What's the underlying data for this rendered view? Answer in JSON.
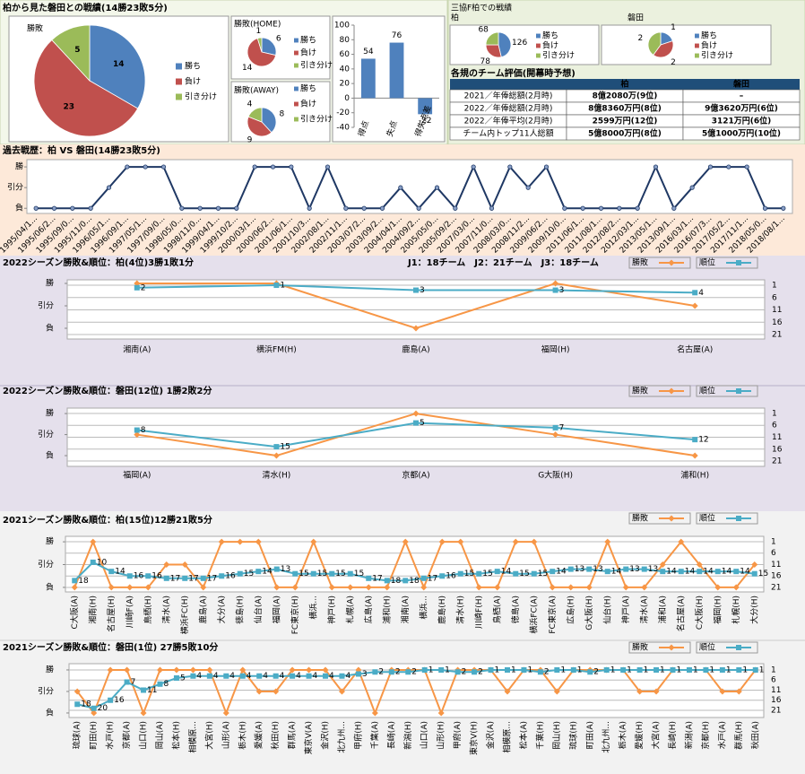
{
  "headings": [
    "柏から見た磐田との戦績(14勝23敗5分)",
    "三協F柏での戦績"
  ],
  "chart_data": [
    {
      "type": "pie",
      "title": "勝敗",
      "categories": [
        "勝ち",
        "負け",
        "引き分け"
      ],
      "values": [
        14,
        23,
        5
      ],
      "colors": [
        "#4f81bd",
        "#c0504d",
        "#9bbb59"
      ]
    },
    {
      "type": "pie",
      "title": "勝敗(HOME)",
      "categories": [
        "勝ち",
        "負け",
        "引き分け"
      ],
      "values": [
        6,
        14,
        1
      ],
      "colors": [
        "#4f81bd",
        "#c0504d",
        "#9bbb59"
      ]
    },
    {
      "type": "pie",
      "title": "勝敗(AWAY)",
      "categories": [
        "勝ち",
        "負け",
        "引き分け"
      ],
      "values": [
        8,
        9,
        4
      ],
      "colors": [
        "#4f81bd",
        "#c0504d",
        "#9bbb59"
      ]
    },
    {
      "type": "bar",
      "categories": [
        "得点",
        "失点",
        "得失点差"
      ],
      "values": [
        54,
        76,
        -22
      ],
      "color": "#4f81bd",
      "ylim": [
        -40,
        100
      ],
      "yticks": [
        -40,
        -20,
        0,
        20,
        40,
        60,
        80,
        100
      ]
    },
    {
      "type": "pie",
      "title": "柏",
      "categories": [
        "勝ち",
        "負け",
        "引き分け"
      ],
      "values": [
        126,
        78,
        68
      ],
      "colors": [
        "#4f81bd",
        "#c0504d",
        "#9bbb59"
      ]
    },
    {
      "type": "pie",
      "title": "磐田",
      "categories": [
        "勝ち",
        "負け",
        "引き分け"
      ],
      "values": [
        1,
        2,
        2
      ],
      "colors": [
        "#4f81bd",
        "#c0504d",
        "#9bbb59"
      ]
    },
    {
      "type": "line",
      "title": "過去戦歴：柏 VS 磐田(14勝23敗5分)",
      "categories": [
        "1995/04/1...",
        "1995/06/2...",
        "1995/09/0...",
        "1995/11/0...",
        "1996/05/1...",
        "1996/09/1...",
        "1997/05/1...",
        "1997/09/0...",
        "1998/05/0...",
        "1998/11/0...",
        "1999/04/1...",
        "1999/10/2...",
        "2000/03/1...",
        "2000/06/2...",
        "2001/06/1...",
        "2001/10/3...",
        "2002/08/1...",
        "2002/11/1...",
        "2003/07/2...",
        "2003/09/2...",
        "2004/04/1...",
        "2004/09/2...",
        "2005/05/0...",
        "2005/09/2...",
        "2007/03/0...",
        "2007/11/0...",
        "2008/03/0...",
        "2008/11/2...",
        "2009/06/2...",
        "2009/10/0...",
        "2011/06/1...",
        "2011/08/1...",
        "2012/08/2...",
        "2012/03/1...",
        "2013/05/1...",
        "2013/09/1...",
        "2016/03/1...",
        "2016/07/3...",
        "2017/05/2...",
        "2017/11/1...",
        "2018/05/0...",
        "2018/08/1..."
      ],
      "series": [
        {
          "color": "#1f3864",
          "marker": "circle",
          "values": [
            0,
            0,
            0,
            0,
            1,
            2,
            2,
            2,
            0,
            0,
            0,
            0,
            2,
            2,
            2,
            0,
            2,
            0,
            0,
            0,
            1,
            0,
            1,
            0,
            2,
            0,
            2,
            1,
            2,
            0,
            0,
            0,
            0,
            0,
            2,
            0,
            1,
            2,
            2,
            2,
            0,
            0
          ]
        }
      ],
      "ylim": [
        -0.25,
        2.35
      ],
      "yticks": [
        {
          "value": 0,
          "label": "負"
        },
        {
          "value": 1,
          "label": "引分"
        },
        {
          "value": 2,
          "label": "勝"
        }
      ],
      "grid": false
    },
    {
      "type": "line",
      "title": "2022シーズン勝敗&順位：柏(4位)3勝1敗1分",
      "note": "J1：18チーム　J2：21チーム　J3：18チーム",
      "categories": [
        "湘南(A)",
        "横浜FM(H)",
        "鹿島(A)",
        "福岡(H)",
        "名古屋(A)"
      ],
      "series": [
        {
          "name": "勝敗",
          "color": "#f79646",
          "marker": "diamond",
          "values": [
            2,
            2,
            0,
            2,
            1
          ]
        },
        {
          "name": "順位",
          "color": "#4bacc6",
          "marker": "square",
          "axis": "y2",
          "data_labels": true,
          "values": [
            2,
            1,
            3,
            3,
            4
          ]
        }
      ],
      "ylim": [
        -0.48,
        2.16
      ],
      "yticks": [
        {
          "value": 0,
          "label": "負"
        },
        {
          "value": 1,
          "label": "引分"
        },
        {
          "value": 2,
          "label": "勝"
        }
      ],
      "y2lim": [
        22.8,
        -1.2
      ],
      "y2ticks": [
        1,
        6,
        11,
        16,
        21
      ],
      "grid": true
    },
    {
      "type": "line",
      "title": "2022シーズン勝敗&順位：磐田(12位) 1勝2敗2分",
      "categories": [
        "福岡(A)",
        "清水(H)",
        "京都(A)",
        "G大阪(H)",
        "浦和(H)"
      ],
      "series": [
        {
          "name": "勝敗",
          "color": "#f79646",
          "marker": "diamond",
          "values": [
            1,
            0,
            2,
            1,
            0
          ]
        },
        {
          "name": "順位",
          "color": "#4bacc6",
          "marker": "square",
          "axis": "y2",
          "data_labels": true,
          "values": [
            8,
            15,
            5,
            7,
            12
          ]
        }
      ],
      "ylim": [
        -0.51,
        2.26
      ],
      "yticks": [
        {
          "value": 0,
          "label": "負"
        },
        {
          "value": 1,
          "label": "引分"
        },
        {
          "value": 2,
          "label": "勝"
        }
      ],
      "y2lim": [
        23.26,
        -1.26
      ],
      "y2ticks": [
        1,
        6,
        11,
        16,
        21
      ],
      "grid": true
    },
    {
      "type": "line",
      "title": "2021シーズン勝敗&順位：柏(15位)12勝21敗5分",
      "categories": [
        "C大阪(A)",
        "湘南(H)",
        "名古屋(H)",
        "川崎F(A)",
        "鳥栖(H)",
        "清水(A)",
        "横浜FC(H)",
        "鹿島(A)",
        "大分(A)",
        "徳島(H)",
        "仙台(A)",
        "福岡(A)",
        "FC東京(H)",
        "横浜...",
        "神戸(H)",
        "札幌(A)",
        "広島(A)",
        "浦和(H)",
        "湘南(A)",
        "横浜...",
        "鹿島(H)",
        "清水(H)",
        "川崎F(H)",
        "鳥栖(A)",
        "徳島(A)",
        "横浜FC(A)",
        "FC東京(A)",
        "広島(H)",
        "G大阪(H)",
        "仙台(H)",
        "神戸(A)",
        "清水(A)",
        "浦和(A)",
        "名古屋(A)",
        "C大阪(H)",
        "福岡(H)",
        "札幌(H)",
        "大分(H)"
      ],
      "series": [
        {
          "name": "勝敗",
          "color": "#f79646",
          "marker": "diamond",
          "values": [
            0,
            2,
            0,
            0,
            0,
            1,
            1,
            0,
            2,
            2,
            2,
            0,
            0,
            2,
            0,
            0,
            0,
            0,
            2,
            0,
            2,
            2,
            0,
            0,
            2,
            2,
            0,
            0,
            0,
            2,
            0,
            0,
            1,
            2,
            1,
            0,
            0,
            1
          ]
        },
        {
          "name": "順位",
          "color": "#4bacc6",
          "marker": "square",
          "axis": "y2",
          "data_labels": true,
          "values": [
            18,
            10,
            14,
            16,
            16,
            17,
            17,
            17,
            16,
            15,
            14,
            13,
            15,
            15,
            15,
            15,
            17,
            18,
            18,
            17,
            16,
            15,
            15,
            14,
            15,
            15,
            14,
            13,
            13,
            14,
            13,
            13,
            14,
            14,
            14,
            14,
            14,
            15
          ]
        }
      ],
      "ylim": [
        -0.2,
        2.24
      ],
      "yticks": [
        {
          "value": 0,
          "label": "負"
        },
        {
          "value": 1,
          "label": "引分"
        },
        {
          "value": 2,
          "label": "勝"
        }
      ],
      "y2lim": [
        22.96,
        -1.35
      ],
      "y2ticks": [
        1,
        6,
        11,
        16,
        21
      ],
      "grid": true
    },
    {
      "type": "line",
      "title": "2021シーズン勝敗&順位：磐田(1位) 27勝5敗10分",
      "categories": [
        "琉球(A)",
        "町田(H)",
        "水戸(H)",
        "京都(A)",
        "山口(H)",
        "岡山(A)",
        "松本(H)",
        "相模原...",
        "大宮(H)",
        "山形(A)",
        "栃木(H)",
        "愛媛(A)",
        "秋田(H)",
        "群馬(A)",
        "東京V(A)",
        "金沢(H)",
        "北九州...",
        "甲府(H)",
        "千葉(A)",
        "長崎(A)",
        "新潟(H)",
        "山口(A)",
        "山形(H)",
        "甲府(A)",
        "東京V(H)",
        "金沢(A)",
        "相模原...",
        "松本(A)",
        "千葉(H)",
        "岡山(H)",
        "琉球(H)",
        "町田(A)",
        "北九州...",
        "栃木(A)",
        "愛媛(H)",
        "大宮(A)",
        "長崎(H)",
        "新潟(A)",
        "京都(H)",
        "水戸(A)",
        "群馬(H)",
        "秋田(A)"
      ],
      "series": [
        {
          "name": "勝敗",
          "color": "#f79646",
          "marker": "diamond",
          "values": [
            1,
            0,
            2,
            2,
            0,
            2,
            2,
            2,
            2,
            0,
            2,
            1,
            1,
            2,
            2,
            2,
            1,
            2,
            0,
            2,
            2,
            2,
            0,
            2,
            2,
            2,
            1,
            2,
            2,
            1,
            2,
            2,
            2,
            2,
            1,
            1,
            2,
            2,
            2,
            1,
            1,
            2
          ]
        },
        {
          "name": "順位",
          "color": "#4bacc6",
          "marker": "square",
          "axis": "y2",
          "data_labels": true,
          "values": [
            18,
            20,
            16,
            7,
            11,
            8,
            5,
            4,
            4,
            4,
            4,
            4,
            4,
            4,
            4,
            4,
            4,
            3,
            2,
            2,
            2,
            1,
            1,
            2,
            2,
            1,
            1,
            1,
            2,
            1,
            1,
            2,
            1,
            1,
            1,
            1,
            1,
            1,
            1,
            1,
            1,
            1
          ]
        }
      ],
      "ylim": [
        -0.21,
        2.29
      ],
      "yticks": [
        {
          "value": 0,
          "label": "負"
        },
        {
          "value": 1,
          "label": "引分"
        },
        {
          "value": 2,
          "label": "勝"
        }
      ],
      "y2lim": [
        24.56,
        -2.11
      ],
      "y2ticks": [
        1,
        6,
        11,
        16,
        21
      ],
      "grid": true
    }
  ],
  "table": {
    "title": "各規のチーム評価(開幕時予想)",
    "columns": [
      "柏",
      "磐田"
    ],
    "rows": [
      [
        "2021／年俸総額(2月時)",
        "8億2080万(9位)",
        "–"
      ],
      [
        "2022／年俸総額(2月時)",
        "8億8360万円(8位)",
        "9億3620万円(6位)"
      ],
      [
        "2022／年俸平均(2月時)",
        "2599万円(12位)",
        "3121万円(6位)"
      ],
      [
        "チーム内トップ11人総額",
        "5億8000万円(8位)",
        "5億1000万円(10位)"
      ]
    ]
  }
}
